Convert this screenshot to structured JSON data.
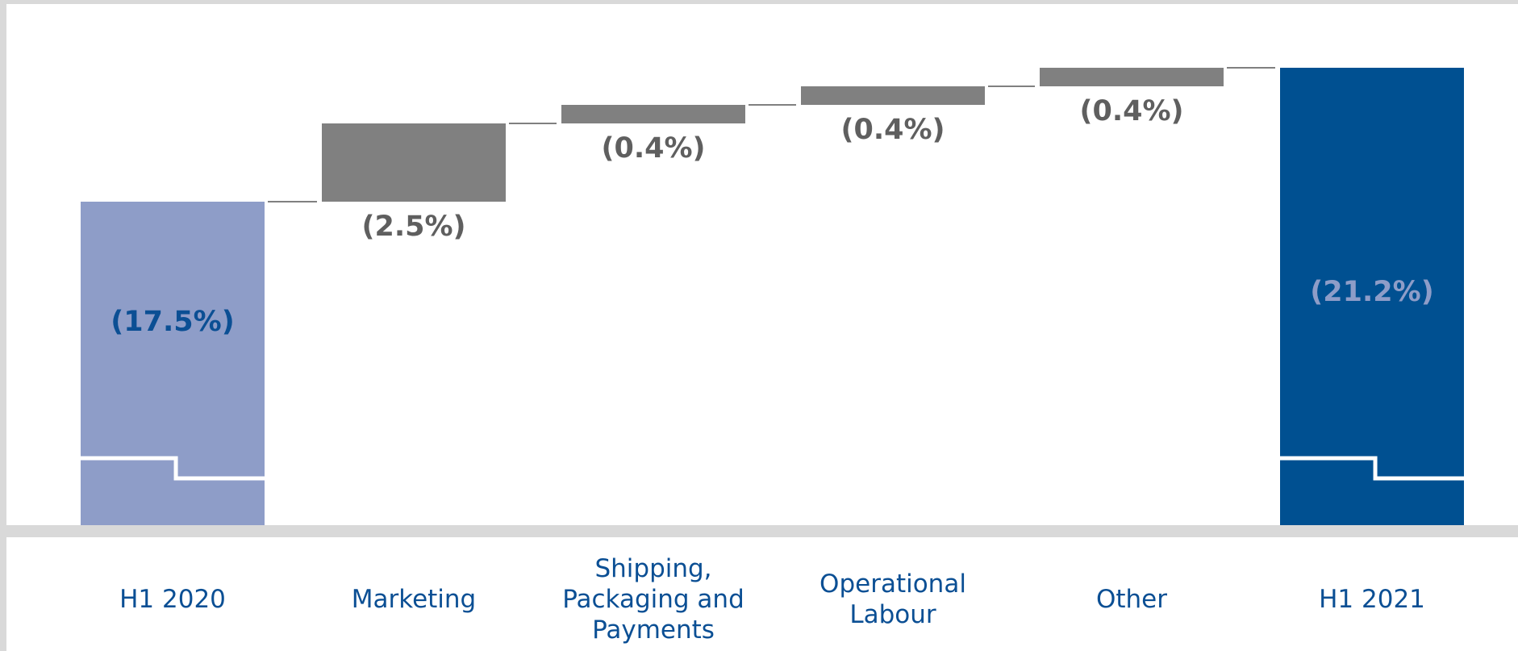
{
  "chart_data": {
    "type": "bar",
    "subtype": "waterfall",
    "categories": [
      [
        "H1 2020"
      ],
      [
        "Marketing"
      ],
      [
        "Shipping,",
        "Packaging and",
        "Payments"
      ],
      [
        "Operational",
        "Labour"
      ],
      [
        "Other"
      ],
      [
        "H1 2021"
      ]
    ],
    "series": [
      {
        "values": [
          -17.5,
          -2.5,
          -0.4,
          -0.4,
          -0.4,
          -21.2
        ],
        "labels": [
          "(17.5%)",
          "(2.5%)",
          "(0.4%)",
          "(0.4%)",
          "(0.4%)",
          "(21.2%)"
        ],
        "kinds": [
          "total",
          "change",
          "change",
          "change",
          "change",
          "total"
        ]
      }
    ],
    "title": "",
    "xlabel": "",
    "ylabel": "",
    "ylim": [
      -25,
      0
    ],
    "axis_break": true,
    "grid": false,
    "legend": "none",
    "colors": {
      "start_total": "#8e9dc8",
      "end_total": "#005091",
      "change": "#808080",
      "connector": "#808080",
      "start_label": "#0b4f94",
      "end_label": "#8e9dc8",
      "change_label": "#5f5f5f",
      "category_label": "#0b4f94",
      "plot_background": "#ffffff",
      "frame": "#d9d9d9"
    }
  }
}
